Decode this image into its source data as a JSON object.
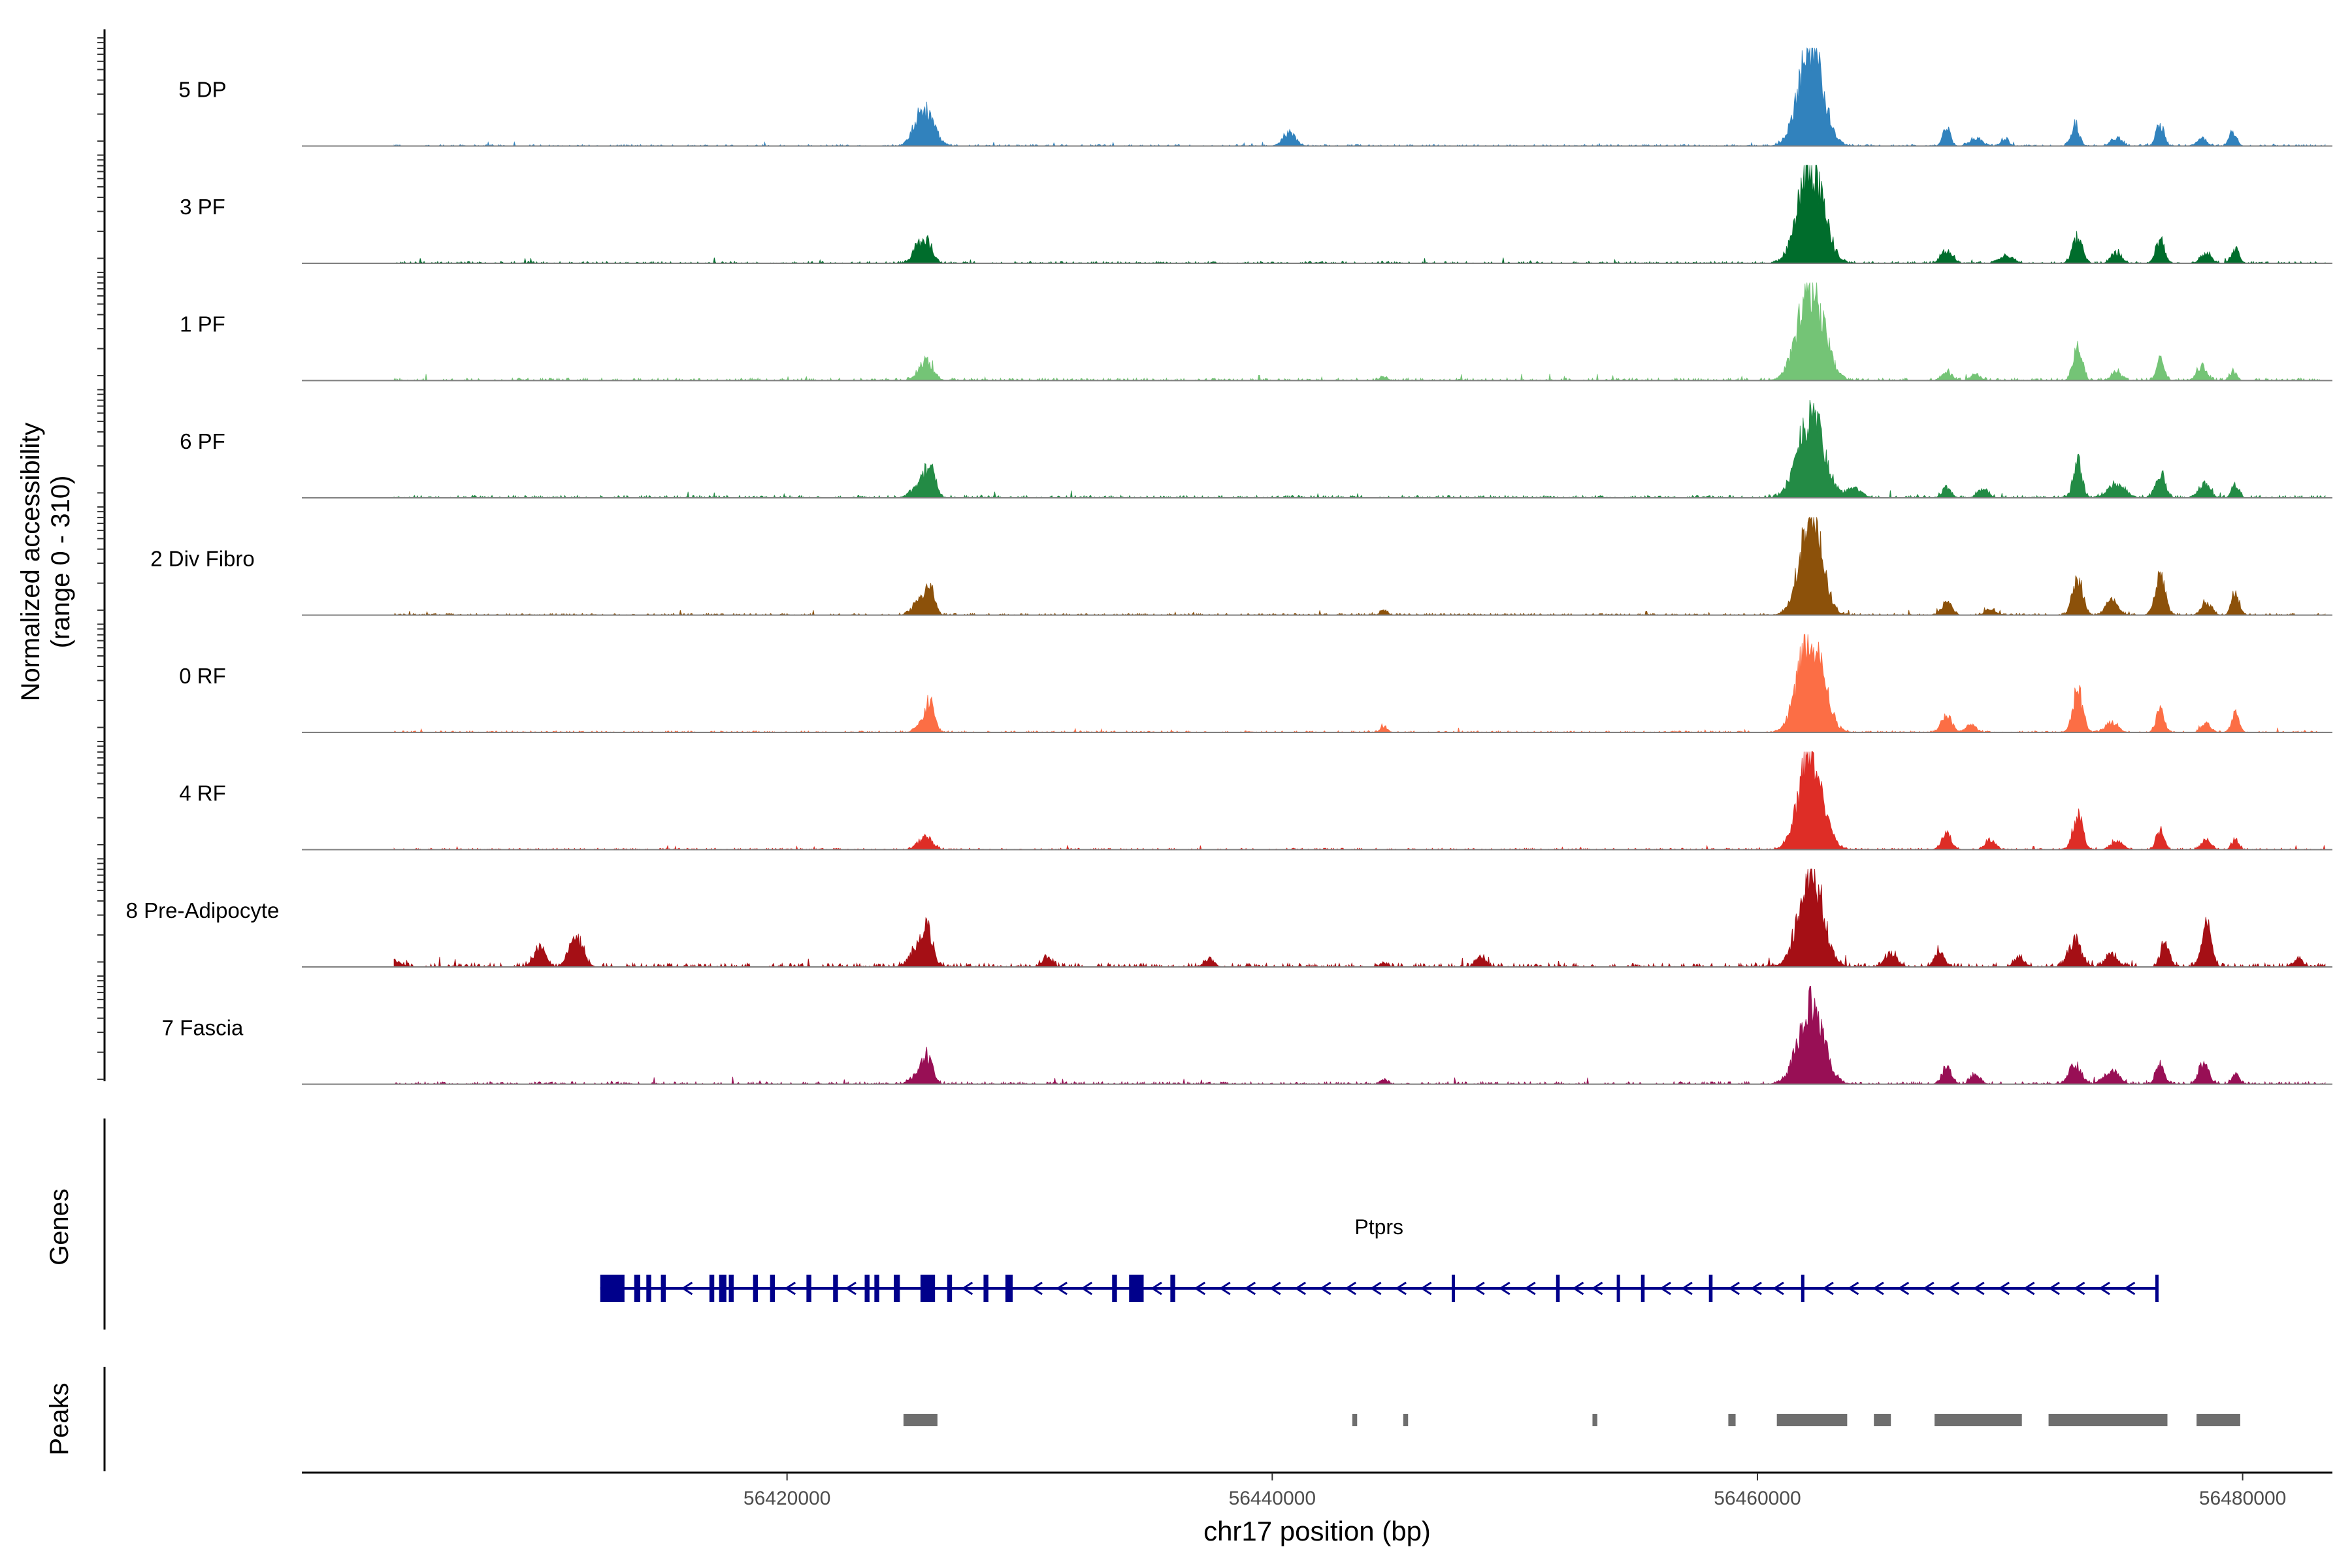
{
  "chart_data": {
    "type": "area",
    "title": "",
    "ylabel": [
      "Normalized accessibility",
      "(range 0 - 310)"
    ],
    "xlabel": "chr17 position (bp)",
    "xlim": [
      56400000,
      56483700
    ],
    "ylim": [
      0,
      310
    ],
    "x_ticks": [
      56420000,
      56440000,
      56460000,
      56480000
    ],
    "x_tick_labels": [
      "56420000",
      "56440000",
      "56460000",
      "56480000"
    ],
    "coverage_extent": [
      56403800,
      56483400
    ],
    "tracks": [
      {
        "name": "5 DP",
        "color": "#3182bd",
        "noise": 5,
        "peaks": [
          [
            56425400,
            260,
            30
          ],
          [
            56425700,
            380,
            95
          ],
          [
            56440700,
            260,
            40
          ],
          [
            56462200,
            500,
            300
          ],
          [
            56467800,
            150,
            60
          ],
          [
            56469000,
            260,
            25
          ],
          [
            56470200,
            150,
            25
          ],
          [
            56473100,
            160,
            70
          ],
          [
            56474800,
            220,
            25
          ],
          [
            56476600,
            160,
            70
          ],
          [
            56478300,
            200,
            25
          ],
          [
            56479600,
            150,
            45
          ]
        ]
      },
      {
        "name": "3 PF",
        "color": "#006d2c",
        "noise": 6,
        "peaks": [
          [
            56425400,
            220,
            50
          ],
          [
            56425800,
            220,
            60
          ],
          [
            56462200,
            500,
            310
          ],
          [
            56467800,
            220,
            40
          ],
          [
            56470300,
            260,
            25
          ],
          [
            56473200,
            200,
            80
          ],
          [
            56474800,
            200,
            35
          ],
          [
            56476600,
            180,
            75
          ],
          [
            56478500,
            200,
            35
          ],
          [
            56479700,
            150,
            45
          ]
        ]
      },
      {
        "name": "1 PF",
        "color": "#74c476",
        "noise": 8,
        "peaks": [
          [
            56425700,
            280,
            60
          ],
          [
            56444600,
            150,
            12
          ],
          [
            56462200,
            520,
            300
          ],
          [
            56467800,
            200,
            25
          ],
          [
            56469000,
            200,
            20
          ],
          [
            56473200,
            180,
            110
          ],
          [
            56474800,
            200,
            25
          ],
          [
            56476600,
            160,
            70
          ],
          [
            56478300,
            200,
            45
          ],
          [
            56479600,
            150,
            25
          ]
        ]
      },
      {
        "name": "6 PF",
        "color": "#238b45",
        "noise": 8,
        "peaks": [
          [
            56425500,
            340,
            40
          ],
          [
            56425900,
            220,
            80
          ],
          [
            56462200,
            520,
            260
          ],
          [
            56464000,
            300,
            30
          ],
          [
            56467800,
            180,
            35
          ],
          [
            56469300,
            220,
            25
          ],
          [
            56473200,
            180,
            110
          ],
          [
            56474800,
            350,
            40
          ],
          [
            56476600,
            200,
            75
          ],
          [
            56478400,
            220,
            45
          ],
          [
            56479700,
            150,
            40
          ]
        ]
      },
      {
        "name": "2 Div Fibro",
        "color": "#8c510a",
        "noise": 6,
        "peaks": [
          [
            56425500,
            280,
            50
          ],
          [
            56425900,
            180,
            70
          ],
          [
            56444600,
            150,
            15
          ],
          [
            56462200,
            450,
            310
          ],
          [
            56467800,
            200,
            40
          ],
          [
            56469600,
            200,
            20
          ],
          [
            56473200,
            200,
            120
          ],
          [
            56474600,
            250,
            45
          ],
          [
            56476600,
            200,
            130
          ],
          [
            56478500,
            200,
            40
          ],
          [
            56479700,
            150,
            75
          ]
        ]
      },
      {
        "name": "0 RF",
        "color": "#fc6e45",
        "noise": 5,
        "peaks": [
          [
            56425500,
            220,
            25
          ],
          [
            56425900,
            180,
            100
          ],
          [
            56444600,
            150,
            15
          ],
          [
            56462200,
            500,
            310
          ],
          [
            56467800,
            200,
            60
          ],
          [
            56468800,
            200,
            25
          ],
          [
            56473200,
            200,
            130
          ],
          [
            56474600,
            250,
            30
          ],
          [
            56476600,
            160,
            80
          ],
          [
            56478500,
            200,
            25
          ],
          [
            56479700,
            150,
            60
          ]
        ]
      },
      {
        "name": "4 RF",
        "color": "#de2d26",
        "noise": 5,
        "peaks": [
          [
            56425700,
            280,
            40
          ],
          [
            56462200,
            480,
            300
          ],
          [
            56467800,
            200,
            50
          ],
          [
            56469600,
            200,
            30
          ],
          [
            56473200,
            200,
            110
          ],
          [
            56474800,
            250,
            25
          ],
          [
            56476600,
            160,
            60
          ],
          [
            56478500,
            200,
            30
          ],
          [
            56479700,
            150,
            30
          ]
        ]
      },
      {
        "name": "8 Pre-Adipocyte",
        "color": "#a50f15",
        "noise": 12,
        "peaks": [
          [
            56403800,
            250,
            20
          ],
          [
            56409800,
            250,
            60
          ],
          [
            56411300,
            280,
            90
          ],
          [
            56425400,
            320,
            60
          ],
          [
            56425800,
            220,
            90
          ],
          [
            56430700,
            200,
            30
          ],
          [
            56437400,
            200,
            25
          ],
          [
            56444600,
            150,
            15
          ],
          [
            56448600,
            200,
            30
          ],
          [
            56462200,
            480,
            310
          ],
          [
            56465500,
            250,
            40
          ],
          [
            56467500,
            200,
            50
          ],
          [
            56470800,
            200,
            30
          ],
          [
            56473100,
            260,
            80
          ],
          [
            56474600,
            250,
            40
          ],
          [
            56476800,
            180,
            80
          ],
          [
            56478500,
            200,
            140
          ],
          [
            56482300,
            200,
            25
          ]
        ]
      },
      {
        "name": "7 Fascia",
        "color": "#980f55",
        "noise": 8,
        "peaks": [
          [
            56425400,
            280,
            30
          ],
          [
            56425800,
            200,
            80
          ],
          [
            56444600,
            150,
            15
          ],
          [
            56462200,
            500,
            260
          ],
          [
            56467800,
            200,
            50
          ],
          [
            56469000,
            200,
            30
          ],
          [
            56473100,
            250,
            60
          ],
          [
            56474600,
            300,
            40
          ],
          [
            56476600,
            180,
            60
          ],
          [
            56478400,
            200,
            70
          ],
          [
            56479700,
            150,
            30
          ]
        ]
      }
    ],
    "genes_panel_label": "Genes",
    "gene": {
      "name": "Ptprs",
      "strand": "-",
      "start": 56412300,
      "end": 56476500,
      "color": "#00008b",
      "exons": [
        [
          56412300,
          56413300
        ],
        [
          56413700,
          56413950
        ],
        [
          56414200,
          56414400
        ],
        [
          56414800,
          56415000
        ],
        [
          56416800,
          56417000
        ],
        [
          56417200,
          56417500
        ],
        [
          56417600,
          56417800
        ],
        [
          56418600,
          56418800
        ],
        [
          56419300,
          56419500
        ],
        [
          56420800,
          56421000
        ],
        [
          56421900,
          56422100
        ],
        [
          56423200,
          56423400
        ],
        [
          56423600,
          56423800
        ],
        [
          56424400,
          56424650
        ],
        [
          56425500,
          56426100
        ],
        [
          56426600,
          56426800
        ],
        [
          56428100,
          56428300
        ],
        [
          56429000,
          56429300
        ],
        [
          56433400,
          56433600
        ],
        [
          56434100,
          56434700
        ],
        [
          56435800,
          56436000
        ],
        [
          56447400,
          56447500
        ],
        [
          56451700,
          56451850
        ],
        [
          56454200,
          56454300
        ],
        [
          56455200,
          56455350
        ],
        [
          56458000,
          56458150
        ],
        [
          56461800,
          56461900
        ],
        [
          56476400,
          56476500
        ]
      ]
    },
    "peaks_panel_label": "Peaks",
    "peak_regions": [
      [
        56424800,
        56426200
      ],
      [
        56443300,
        56443500
      ],
      [
        56445400,
        56445600
      ],
      [
        56453200,
        56453400
      ],
      [
        56458800,
        56459100
      ],
      [
        56460800,
        56463700
      ],
      [
        56464800,
        56465500
      ],
      [
        56467300,
        56470900
      ],
      [
        56472000,
        56476900
      ],
      [
        56478100,
        56479900
      ]
    ]
  }
}
